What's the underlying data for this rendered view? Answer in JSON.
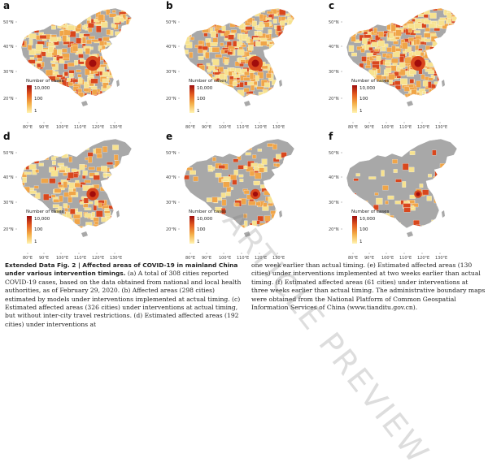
{
  "panels": [
    {
      "letter": "a",
      "fill_density": 0.95
    },
    {
      "letter": "b",
      "fill_density": 0.95
    },
    {
      "letter": "c",
      "fill_density": 1.0
    },
    {
      "letter": "d",
      "fill_density": 0.62
    },
    {
      "letter": "e",
      "fill_density": 0.42
    },
    {
      "letter": "f",
      "fill_density": 0.2
    }
  ],
  "axis": {
    "latitudes": [
      "50°N",
      "40°N",
      "30°N",
      "20°N"
    ],
    "longitudes": [
      "80°E",
      "90°E",
      "100°E",
      "110°E",
      "120°E",
      "130°E"
    ]
  },
  "legend": {
    "title": "Number of cases",
    "ticks": [
      "10,000",
      "100",
      "1"
    ],
    "colors": [
      "#9e0d0d",
      "#e45b1f",
      "#f4b14a",
      "#fff3b0"
    ]
  },
  "colors": {
    "base_gray": "#a8a8a8",
    "low": "#f7e28f",
    "mid": "#f0a548",
    "high": "#d9471d",
    "peak": "#a10c0c"
  },
  "caption": {
    "left_bold": "Extended Data Fig. 2 | Affected areas of COVID-19 in mainland China under various intervention timings.",
    "left_text": " (a) A total of 308 cities reported COVID-19 cases, based on the data obtained from national and local health authorities, as of February 29, 2020. (b) Affected areas (298 cities) estimated by models under interventions implemented at actual timing. (c) Estimated affected areas (326 cities) under interventions at actual timing, but without inter-city travel restrictions. (d) Estimated affected areas (192 cities) under interventions at",
    "right_text": "one week earlier than actual timing. (e) Estimated affected areas (130 cities) under interventions implemented at two weeks earlier than actual timing. (f) Estimated affected areas (61 cities) under interventions at three weeks earlier than actual timing. The administrative boundary maps were obtained from the National Platform of Common Geospatial Information Services of China (www.tianditu.gov.cn)."
  },
  "watermark": "ARTICLE PREVIEW"
}
